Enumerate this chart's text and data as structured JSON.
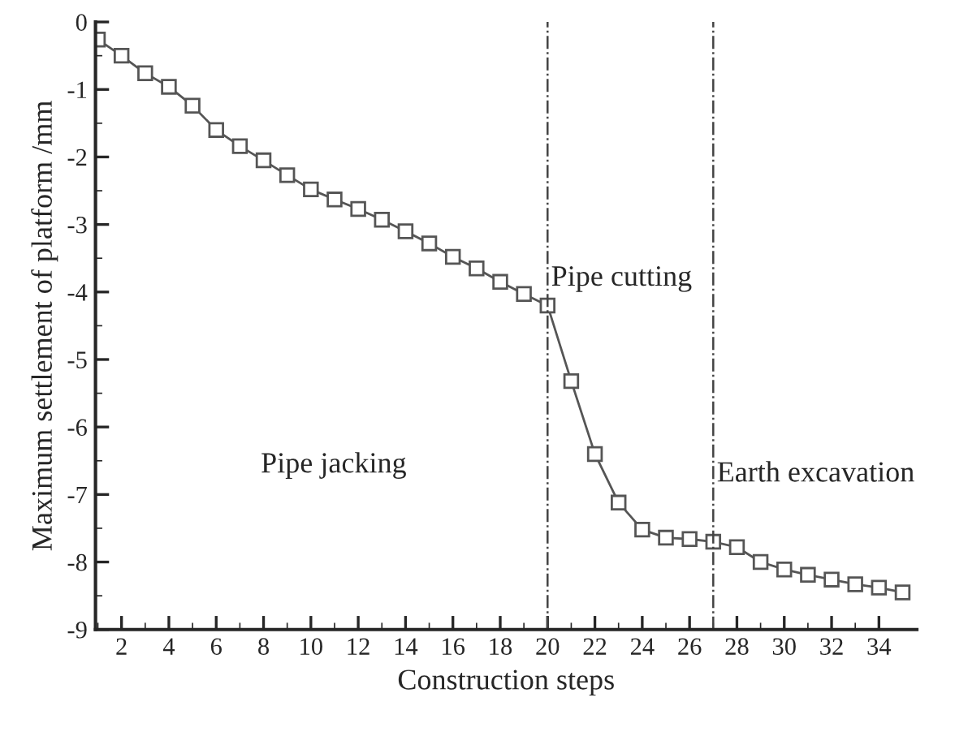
{
  "chart_data": {
    "type": "line",
    "xlabel": "Construction steps",
    "ylabel": "Maximum settlement of platform /mm",
    "x": [
      1,
      2,
      3,
      4,
      5,
      6,
      7,
      8,
      9,
      10,
      11,
      12,
      13,
      14,
      15,
      16,
      17,
      18,
      19,
      20,
      21,
      22,
      23,
      24,
      25,
      26,
      27,
      28,
      29,
      30,
      31,
      32,
      33,
      34,
      35
    ],
    "series": [
      {
        "color": "#555555",
        "values": [
          -0.26,
          -0.5,
          -0.76,
          -0.96,
          -1.24,
          -1.6,
          -1.84,
          -2.05,
          -2.27,
          -2.48,
          -2.63,
          -2.77,
          -2.93,
          -3.1,
          -3.28,
          -3.48,
          -3.65,
          -3.85,
          -4.03,
          -4.2,
          -5.32,
          -6.4,
          -7.12,
          -7.52,
          -7.64,
          -7.66,
          -7.7,
          -7.78,
          -8.0,
          -8.11,
          -8.19,
          -8.26,
          -8.33,
          -8.38,
          -8.45
        ]
      }
    ],
    "marker": "square",
    "line_style": "solid",
    "xlim": [
      0.9,
      35.6
    ],
    "xticks": [
      2,
      4,
      6,
      8,
      10,
      12,
      14,
      16,
      18,
      20,
      22,
      24,
      26,
      28,
      30,
      32,
      34
    ],
    "ylim": [
      -9,
      0
    ],
    "yticks": [
      0,
      -1,
      -2,
      -3,
      -4,
      -5,
      -6,
      -7,
      -8,
      -9
    ],
    "ref_lines": [
      {
        "axis": "x",
        "value": 20,
        "label": "Pipe cutting",
        "line_style": "dashdot",
        "color": "#444444"
      },
      {
        "axis": "x",
        "value": 27,
        "label": "Earth excavation",
        "line_style": "dashdot",
        "color": "#444444"
      }
    ],
    "annotations": [
      "Pipe jacking"
    ],
    "grid": false,
    "legend": false
  }
}
